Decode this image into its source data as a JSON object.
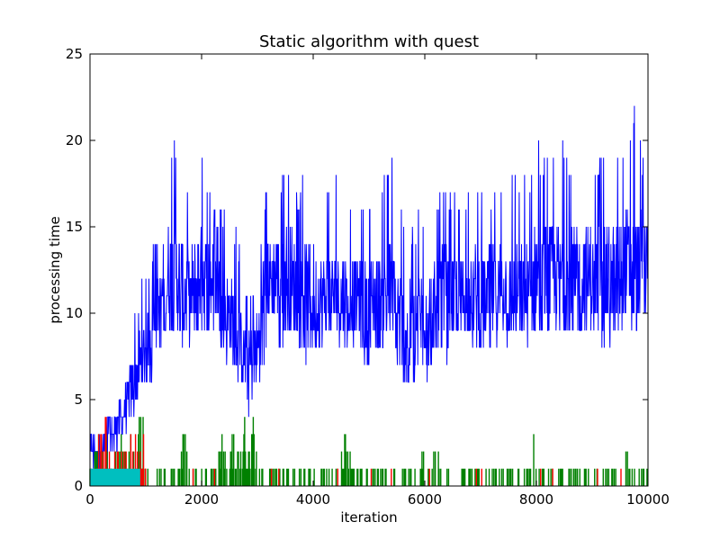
{
  "chart_data": {
    "type": "line",
    "title": "Static algorithm with quest",
    "xlabel": "iteration",
    "ylabel": "processing time",
    "xlim": [
      0,
      10000
    ],
    "ylim": [
      0,
      25
    ],
    "xticks": [
      "0",
      "2000",
      "4000",
      "6000",
      "8000",
      "10000"
    ],
    "yticks": [
      "0",
      "5",
      "10",
      "15",
      "20",
      "25"
    ],
    "grid": false,
    "legend": "none",
    "series": [
      {
        "color": "#0000ff",
        "x": [
          0,
          200,
          300,
          400,
          500,
          600,
          700,
          800,
          900,
          1000,
          1100,
          1200,
          1300,
          1400,
          1500,
          1600,
          1700,
          1800,
          1900,
          2000,
          2100,
          2200,
          2300,
          2400,
          2500,
          2600,
          2700,
          2800,
          2900,
          3000,
          3100,
          3200,
          3300,
          3400,
          3500,
          3600,
          3700,
          3800,
          3900,
          4000,
          4100,
          4200,
          4300,
          4400,
          4500,
          4600,
          4700,
          4800,
          4900,
          5000,
          5100,
          5200,
          5300,
          5400,
          5500,
          5600,
          5700,
          5800,
          5900,
          6000,
          6100,
          6200,
          6300,
          6400,
          6500,
          6600,
          6700,
          6800,
          6900,
          7000,
          7100,
          7200,
          7300,
          7400,
          7500,
          7600,
          7700,
          7800,
          7900,
          8000,
          8100,
          8200,
          8300,
          8400,
          8500,
          8600,
          8700,
          8800,
          8900,
          9000,
          9100,
          9200,
          9300,
          9400,
          9500,
          9600,
          9700,
          9800,
          9900,
          10000
        ],
        "y_mean": [
          2,
          2,
          3,
          3,
          4,
          4,
          5,
          6,
          7,
          8,
          9,
          10,
          11,
          12,
          12,
          12,
          11,
          11,
          12,
          12,
          12,
          12,
          11,
          10,
          10,
          9,
          8,
          7,
          7,
          8,
          11,
          12,
          12,
          12,
          12,
          12,
          11,
          11,
          11,
          11,
          11,
          11,
          11,
          11,
          11,
          11,
          11,
          11,
          10,
          10,
          11,
          11,
          11,
          11,
          10,
          9,
          9,
          9,
          10,
          10,
          10,
          10,
          11,
          11,
          11,
          11,
          11,
          11,
          11,
          11,
          11,
          11,
          11,
          12,
          11,
          11,
          11,
          11,
          11,
          12,
          12,
          12,
          12,
          12,
          12,
          12,
          12,
          12,
          12,
          12,
          12,
          12,
          12,
          12,
          13,
          13,
          12,
          12,
          13,
          13
        ],
        "y_min": [
          0,
          1,
          1,
          1,
          2,
          2,
          3,
          4,
          5,
          6,
          6,
          7,
          7,
          8,
          8,
          8,
          7,
          7,
          8,
          8,
          8,
          8,
          8,
          7,
          6,
          6,
          5,
          4,
          4,
          5,
          7,
          8,
          8,
          8,
          8,
          8,
          8,
          8,
          7,
          7,
          8,
          8,
          8,
          7,
          7,
          8,
          8,
          8,
          7,
          7,
          7,
          8,
          8,
          8,
          7,
          6,
          5,
          5,
          6,
          6,
          6,
          7,
          7,
          7,
          8,
          8,
          8,
          8,
          8,
          8,
          8,
          7,
          8,
          8,
          8,
          8,
          8,
          8,
          8,
          8,
          8,
          8,
          8,
          8,
          8,
          8,
          8,
          8,
          8,
          8,
          8,
          8,
          8,
          8,
          9,
          9,
          9,
          9,
          9,
          10
        ],
        "y_max": [
          3,
          3,
          4,
          4,
          6,
          6,
          8,
          10,
          12,
          13,
          14,
          14,
          16,
          19,
          20,
          20,
          18,
          16,
          18,
          19,
          18,
          16,
          16,
          16,
          15,
          15,
          14,
          12,
          12,
          12,
          17,
          18,
          18,
          18,
          19,
          20,
          17,
          18,
          18,
          18,
          18,
          17,
          17,
          18,
          17,
          16,
          17,
          17,
          17,
          17,
          17,
          18,
          18,
          19,
          18,
          17,
          16,
          15,
          16,
          16,
          16,
          16,
          18,
          17,
          17,
          17,
          17,
          17,
          18,
          18,
          17,
          17,
          18,
          18,
          19,
          19,
          18,
          18,
          18,
          21,
          19,
          20,
          20,
          19,
          20,
          19,
          19,
          19,
          19,
          19,
          19,
          19,
          19,
          19,
          20,
          20,
          21,
          23,
          19,
          19
        ]
      },
      {
        "color": "#008000",
        "y_range": [
          0,
          6
        ],
        "note": "sparse spikes near baseline with bursts around 2500-3000, 4600, 6000-6200 and 8000"
      },
      {
        "color": "#ff0000",
        "y_range": [
          0,
          4
        ],
        "note": "spikes mainly before iteration 1000"
      },
      {
        "color": "#00bfbf",
        "y_range": [
          0,
          1
        ],
        "note": "filled level of 1 from 0 to about 900"
      }
    ]
  }
}
